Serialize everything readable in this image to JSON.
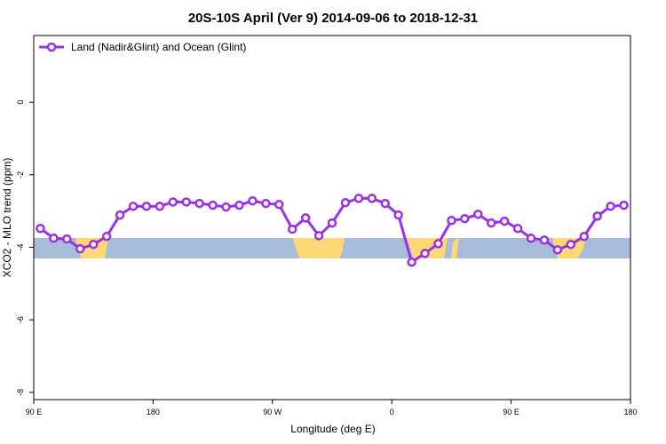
{
  "chart_data": {
    "type": "line",
    "title": "20S-10S April (Ver 9)   2014-09-06 to 2018-12-31",
    "x_label": "Longitude (deg E)",
    "y_label": "XCO2 - MLO trend (ppm)",
    "x": [
      95,
      105,
      115,
      125,
      135,
      145,
      155,
      165,
      175,
      185,
      195,
      205,
      215,
      225,
      235,
      245,
      255,
      265,
      275,
      285,
      295,
      305,
      315,
      325,
      335,
      345,
      355,
      365,
      375,
      385,
      395,
      405,
      415,
      425,
      435,
      445,
      455,
      465,
      475,
      485,
      495,
      505,
      515,
      525,
      535
    ],
    "series": [
      {
        "name": "Land (Nadir&Glint) and Ocean (Glint)",
        "color": "#9b30e6",
        "values": [
          -3.48,
          -3.75,
          -3.77,
          -4.04,
          -3.92,
          -3.7,
          -3.11,
          -2.87,
          -2.87,
          -2.87,
          -2.75,
          -2.75,
          -2.79,
          -2.84,
          -2.89,
          -2.84,
          -2.72,
          -2.79,
          -2.82,
          -3.5,
          -3.19,
          -3.68,
          -3.33,
          -2.77,
          -2.65,
          -2.65,
          -2.79,
          -3.11,
          -4.41,
          -4.17,
          -3.9,
          -3.26,
          -3.21,
          -3.09,
          -3.33,
          -3.28,
          -3.48,
          -3.75,
          -3.8,
          -4.07,
          -3.92,
          -3.7,
          -3.14,
          -2.87,
          -2.84
        ]
      }
    ],
    "xlim": [
      90,
      540
    ],
    "xticks": [
      {
        "value": 90,
        "label": "90 E"
      },
      180,
      {
        "value": 270,
        "label": "90 W"
      },
      {
        "value": 360,
        "label": "0"
      },
      {
        "value": 450,
        "label": "90 E"
      },
      {
        "value": 540,
        "label": "180"
      }
    ],
    "ylim": [
      -8.2,
      1.84
    ],
    "yticks": [
      0,
      -2,
      -4,
      -6,
      -8
    ],
    "legend": "top-left"
  }
}
